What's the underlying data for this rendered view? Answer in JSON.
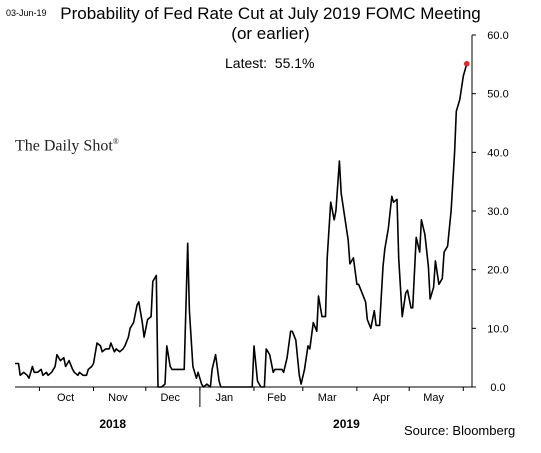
{
  "header": {
    "date_stamp": "03-Jun-19",
    "title": "Probability of Fed Rate Cut at July 2019 FOMC Meeting",
    "subtitle": "(or earlier)",
    "latest": "Latest:  55.1%"
  },
  "branding": {
    "name": "The Daily Shot",
    "mark": "®"
  },
  "source": "Source: Bloomberg",
  "colors": {
    "line": "#000000",
    "latest_marker": "#e8262a",
    "axis": "#000000"
  },
  "chart_data": {
    "type": "line",
    "title": "Probability of Fed Rate Cut at July 2019 FOMC Meeting",
    "subtitle": "(or earlier)",
    "xlabel": "",
    "ylabel": "",
    "ylim": [
      0,
      60
    ],
    "y_ticks": [
      "0.0",
      "10.0",
      "20.0",
      "30.0",
      "40.0",
      "50.0",
      "60.0"
    ],
    "y_axis_position": "right",
    "grid": false,
    "x_range": [
      "2018-09-17",
      "2019-06-06"
    ],
    "month_labels": [
      {
        "label": "Oct",
        "date": "2018-10-16"
      },
      {
        "label": "Nov",
        "date": "2018-11-15"
      },
      {
        "label": "Dec",
        "date": "2018-12-15"
      },
      {
        "label": "Jan",
        "date": "2019-01-15"
      },
      {
        "label": "Feb",
        "date": "2019-02-14"
      },
      {
        "label": "Mar",
        "date": "2019-03-15"
      },
      {
        "label": "Apr",
        "date": "2019-04-15"
      },
      {
        "label": "May",
        "date": "2019-05-15"
      }
    ],
    "year_labels": [
      {
        "label": "2018",
        "date": "2018-11-12"
      },
      {
        "label": "2019",
        "date": "2019-03-26"
      }
    ],
    "year_divider_date": "2019-01-01",
    "latest": {
      "date": "2019-06-03",
      "value": 55.1
    },
    "series": [
      {
        "values": [
          [
            "2018-09-17",
            4.0
          ],
          [
            "2018-09-19",
            4.0
          ],
          [
            "2018-09-20",
            2.0
          ],
          [
            "2018-09-22",
            2.5
          ],
          [
            "2018-09-24",
            2.0
          ],
          [
            "2018-09-25",
            1.5
          ],
          [
            "2018-09-27",
            3.5
          ],
          [
            "2018-09-28",
            2.5
          ],
          [
            "2018-09-30",
            2.5
          ],
          [
            "2018-10-02",
            3.0
          ],
          [
            "2018-10-03",
            2.0
          ],
          [
            "2018-10-05",
            2.5
          ],
          [
            "2018-10-06",
            2.0
          ],
          [
            "2018-10-08",
            2.5
          ],
          [
            "2018-10-10",
            3.5
          ],
          [
            "2018-10-11",
            5.5
          ],
          [
            "2018-10-13",
            4.5
          ],
          [
            "2018-10-15",
            5.0
          ],
          [
            "2018-10-16",
            3.5
          ],
          [
            "2018-10-18",
            4.5
          ],
          [
            "2018-10-20",
            3.0
          ],
          [
            "2018-10-21",
            2.5
          ],
          [
            "2018-10-23",
            2.0
          ],
          [
            "2018-10-24",
            2.5
          ],
          [
            "2018-10-26",
            2.0
          ],
          [
            "2018-10-28",
            2.0
          ],
          [
            "2018-10-29",
            3.0
          ],
          [
            "2018-10-31",
            3.5
          ],
          [
            "2018-11-01",
            4.0
          ],
          [
            "2018-11-03",
            7.5
          ],
          [
            "2018-11-05",
            7.0
          ],
          [
            "2018-11-06",
            6.0
          ],
          [
            "2018-11-08",
            6.5
          ],
          [
            "2018-11-10",
            6.5
          ],
          [
            "2018-11-11",
            7.5
          ],
          [
            "2018-11-13",
            6.0
          ],
          [
            "2018-11-14",
            6.5
          ],
          [
            "2018-11-16",
            6.0
          ],
          [
            "2018-11-18",
            6.5
          ],
          [
            "2018-11-19",
            7.0
          ],
          [
            "2018-11-21",
            8.5
          ],
          [
            "2018-11-22",
            10.0
          ],
          [
            "2018-11-24",
            11.0
          ],
          [
            "2018-11-26",
            14.0
          ],
          [
            "2018-11-27",
            14.5
          ],
          [
            "2018-11-29",
            11.0
          ],
          [
            "2018-11-30",
            8.5
          ],
          [
            "2018-12-02",
            11.5
          ],
          [
            "2018-12-04",
            12.0
          ],
          [
            "2018-12-05",
            18.0
          ],
          [
            "2018-12-07",
            19.0
          ],
          [
            "2018-12-08",
            0.0
          ],
          [
            "2018-12-10",
            0.0
          ],
          [
            "2018-12-12",
            0.5
          ],
          [
            "2018-12-13",
            7.0
          ],
          [
            "2018-12-15",
            3.5
          ],
          [
            "2018-12-16",
            3.0
          ],
          [
            "2018-12-18",
            3.0
          ],
          [
            "2018-12-20",
            3.0
          ],
          [
            "2018-12-21",
            3.0
          ],
          [
            "2018-12-23",
            3.0
          ],
          [
            "2018-12-25",
            24.5
          ],
          [
            "2018-12-26",
            13.0
          ],
          [
            "2018-12-28",
            3.5
          ],
          [
            "2018-12-30",
            1.5
          ],
          [
            "2018-12-31",
            2.5
          ],
          [
            "2019-01-02",
            0.5
          ],
          [
            "2019-01-03",
            0.0
          ],
          [
            "2019-01-05",
            0.5
          ],
          [
            "2019-01-07",
            0.0
          ],
          [
            "2019-01-08",
            3.0
          ],
          [
            "2019-01-10",
            5.5
          ],
          [
            "2019-01-12",
            1.0
          ],
          [
            "2019-01-13",
            0.0
          ],
          [
            "2019-01-15",
            0.0
          ],
          [
            "2019-01-31",
            0.0
          ],
          [
            "2019-02-01",
            7.0
          ],
          [
            "2019-02-03",
            1.0
          ],
          [
            "2019-02-05",
            0.0
          ],
          [
            "2019-02-07",
            0.0
          ],
          [
            "2019-02-08",
            6.5
          ],
          [
            "2019-02-10",
            5.5
          ],
          [
            "2019-02-12",
            2.5
          ],
          [
            "2019-02-13",
            3.0
          ],
          [
            "2019-02-15",
            3.0
          ],
          [
            "2019-02-17",
            3.0
          ],
          [
            "2019-02-18",
            2.5
          ],
          [
            "2019-02-20",
            5.0
          ],
          [
            "2019-02-22",
            9.5
          ],
          [
            "2019-02-23",
            9.5
          ],
          [
            "2019-02-25",
            8.0
          ],
          [
            "2019-02-27",
            2.0
          ],
          [
            "2019-02-28",
            0.5
          ],
          [
            "2019-03-02",
            3.0
          ],
          [
            "2019-03-04",
            7.0
          ],
          [
            "2019-03-05",
            6.5
          ],
          [
            "2019-03-07",
            11.0
          ],
          [
            "2019-03-09",
            9.5
          ],
          [
            "2019-03-10",
            15.5
          ],
          [
            "2019-03-12",
            12.0
          ],
          [
            "2019-03-14",
            12.0
          ],
          [
            "2019-03-15",
            22.0
          ],
          [
            "2019-03-17",
            31.5
          ],
          [
            "2019-03-19",
            28.5
          ],
          [
            "2019-03-20",
            30.0
          ],
          [
            "2019-03-22",
            38.5
          ],
          [
            "2019-03-23",
            33.0
          ],
          [
            "2019-03-25",
            29.0
          ],
          [
            "2019-03-27",
            25.0
          ],
          [
            "2019-03-28",
            21.0
          ],
          [
            "2019-03-30",
            22.0
          ],
          [
            "2019-04-01",
            17.5
          ],
          [
            "2019-04-02",
            17.5
          ],
          [
            "2019-04-04",
            16.0
          ],
          [
            "2019-04-06",
            14.5
          ],
          [
            "2019-04-07",
            11.5
          ],
          [
            "2019-04-09",
            10.0
          ],
          [
            "2019-04-11",
            13.0
          ],
          [
            "2019-04-12",
            10.5
          ],
          [
            "2019-04-14",
            10.5
          ],
          [
            "2019-04-16",
            20.5
          ],
          [
            "2019-04-17",
            23.5
          ],
          [
            "2019-04-19",
            27.0
          ],
          [
            "2019-04-21",
            32.5
          ],
          [
            "2019-04-22",
            31.5
          ],
          [
            "2019-04-24",
            32.0
          ],
          [
            "2019-04-25",
            22.0
          ],
          [
            "2019-04-27",
            12.0
          ],
          [
            "2019-04-29",
            16.0
          ],
          [
            "2019-04-30",
            16.5
          ],
          [
            "2019-05-02",
            13.5
          ],
          [
            "2019-05-03",
            13.5
          ],
          [
            "2019-05-05",
            25.5
          ],
          [
            "2019-05-07",
            23.0
          ],
          [
            "2019-05-08",
            28.5
          ],
          [
            "2019-05-10",
            26.0
          ],
          [
            "2019-05-12",
            20.5
          ],
          [
            "2019-05-13",
            15.0
          ],
          [
            "2019-05-15",
            17.0
          ],
          [
            "2019-05-16",
            21.5
          ],
          [
            "2019-05-18",
            17.5
          ],
          [
            "2019-05-20",
            18.5
          ],
          [
            "2019-05-21",
            23.0
          ],
          [
            "2019-05-23",
            24.0
          ],
          [
            "2019-05-25",
            30.0
          ],
          [
            "2019-05-27",
            40.0
          ],
          [
            "2019-05-28",
            47.0
          ],
          [
            "2019-05-30",
            49.0
          ],
          [
            "2019-06-01",
            53.0
          ],
          [
            "2019-06-03",
            55.1
          ]
        ]
      }
    ]
  }
}
